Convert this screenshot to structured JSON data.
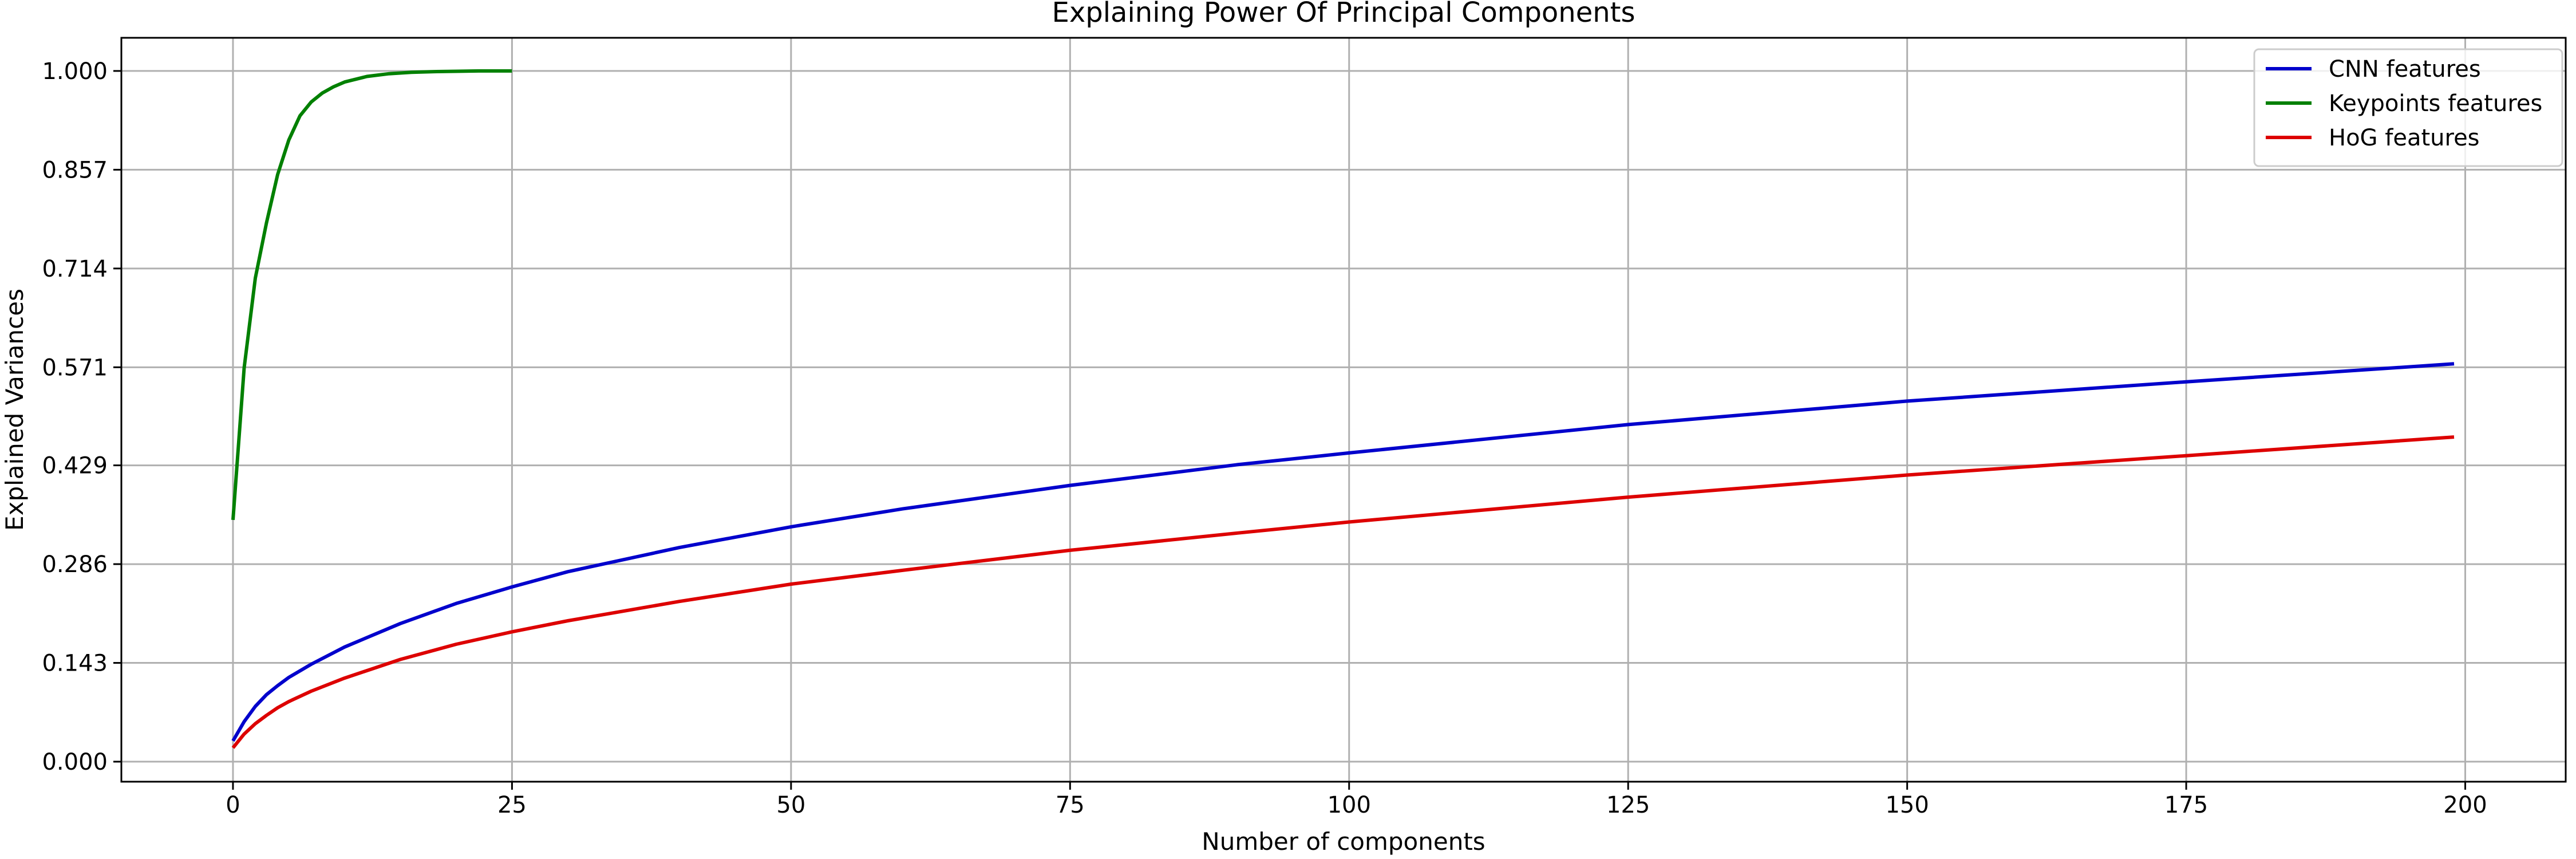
{
  "chart_data": {
    "type": "line",
    "title": "Explaining Power Of Principal Components",
    "xlabel": "Number of components",
    "ylabel": "Explained Variances",
    "xlim": [
      -10,
      209
    ],
    "ylim": [
      -0.029,
      1.048
    ],
    "xticks": [
      0,
      25,
      50,
      75,
      100,
      125,
      150,
      175,
      200
    ],
    "xtick_labels": [
      "0",
      "25",
      "50",
      "75",
      "100",
      "125",
      "150",
      "175",
      "200"
    ],
    "yticks": [
      0.0,
      0.143,
      0.286,
      0.429,
      0.571,
      0.714,
      0.857,
      1.0
    ],
    "ytick_labels": [
      "0.000",
      "0.143",
      "0.286",
      "0.429",
      "0.571",
      "0.714",
      "0.857",
      "1.000"
    ],
    "grid": true,
    "legend_position": "top-right",
    "series": [
      {
        "name": "CNN features",
        "color": "#0000cc",
        "x": [
          0,
          1,
          2,
          3,
          4,
          5,
          7,
          10,
          15,
          20,
          25,
          30,
          40,
          50,
          60,
          75,
          90,
          100,
          125,
          150,
          175,
          199
        ],
        "y": [
          0.03,
          0.058,
          0.08,
          0.097,
          0.11,
          0.122,
          0.141,
          0.166,
          0.2,
          0.229,
          0.253,
          0.275,
          0.31,
          0.34,
          0.366,
          0.4,
          0.43,
          0.447,
          0.488,
          0.522,
          0.55,
          0.576
        ]
      },
      {
        "name": "Keypoints features",
        "color": "#008000",
        "x": [
          0,
          1,
          2,
          3,
          4,
          5,
          6,
          7,
          8,
          9,
          10,
          12,
          14,
          16,
          18,
          20,
          22,
          25
        ],
        "y": [
          0.35,
          0.57,
          0.7,
          0.78,
          0.85,
          0.9,
          0.935,
          0.955,
          0.968,
          0.977,
          0.984,
          0.992,
          0.996,
          0.998,
          0.999,
          0.9995,
          1.0,
          1.0
        ]
      },
      {
        "name": "HoG features",
        "color": "#dd0000",
        "x": [
          0,
          1,
          2,
          3,
          4,
          5,
          7,
          10,
          15,
          20,
          25,
          30,
          40,
          50,
          60,
          75,
          90,
          100,
          125,
          150,
          175,
          199
        ],
        "y": [
          0.02,
          0.04,
          0.055,
          0.067,
          0.078,
          0.087,
          0.102,
          0.121,
          0.148,
          0.17,
          0.188,
          0.204,
          0.232,
          0.257,
          0.277,
          0.306,
          0.331,
          0.347,
          0.383,
          0.415,
          0.443,
          0.47
        ]
      }
    ]
  }
}
